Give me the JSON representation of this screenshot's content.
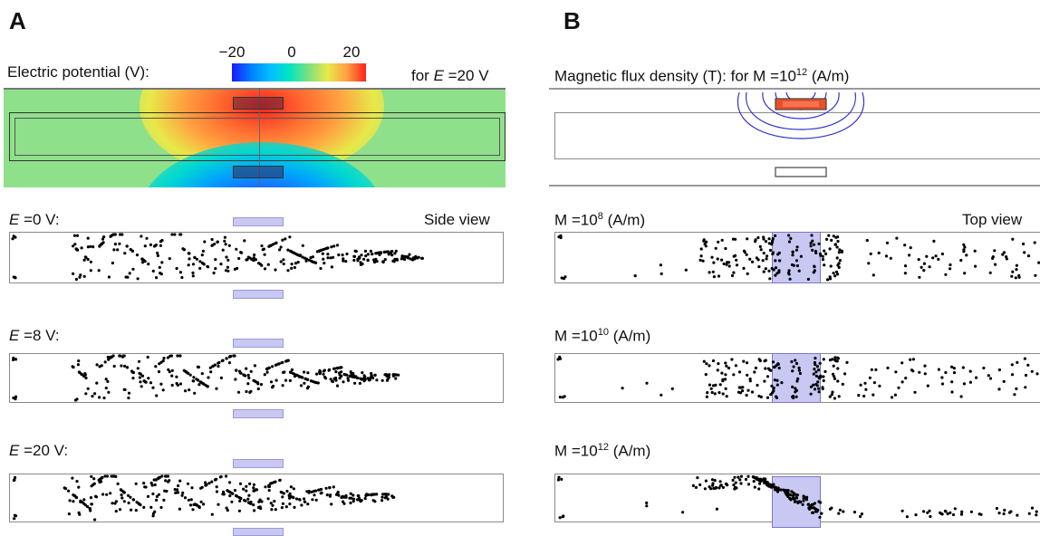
{
  "panel_a": {
    "letter": "A",
    "colorbar": {
      "title": "Electric potential (V):",
      "ticks": [
        "−20",
        "0",
        "20"
      ]
    },
    "field_note_prefix": "for ",
    "field_note_var": "E",
    "field_note_value": " =20 V",
    "view_label": "Side view",
    "rows": [
      {
        "var": "E",
        "label": " =0 V:"
      },
      {
        "var": "E",
        "label": " =8 V:"
      },
      {
        "var": "E",
        "label": " =20 V:"
      }
    ]
  },
  "panel_b": {
    "letter": "B",
    "title_main": "Magnetic flux density (T): for M  =10",
    "title_exp": "12",
    "title_unit": " (A/m)",
    "view_label": "Top view",
    "rows": [
      {
        "label": "M =10",
        "exp": "8",
        "unit": " (A/m)"
      },
      {
        "label": "M =10",
        "exp": "10",
        "unit": " (A/m)"
      },
      {
        "label": "M =10",
        "exp": "12",
        "unit": " (A/m)"
      }
    ]
  },
  "colors": {
    "potential_gradient": [
      "#1a1aff",
      "#00bfff",
      "#00e5c0",
      "#8fe08a",
      "#e8e84a",
      "#ffa040",
      "#ff2020"
    ],
    "electrode": "#c9c8f2",
    "particle": "#000000",
    "magnet": "#e8502a",
    "field_line": "#3333cc"
  }
}
